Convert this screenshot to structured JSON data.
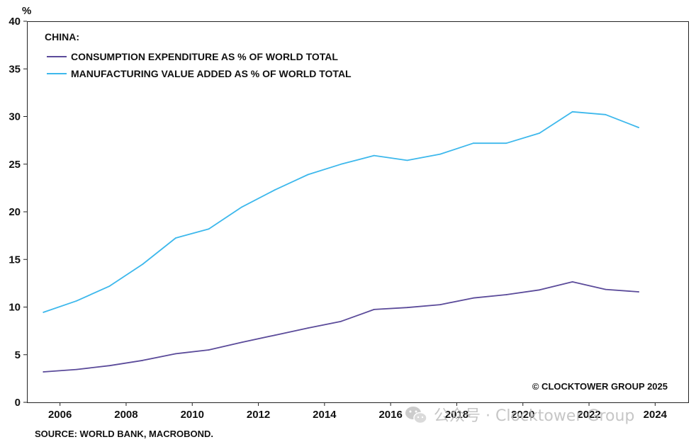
{
  "chart_data": {
    "type": "line",
    "title": "CHINA:",
    "ylabel": "%",
    "xlabel": "",
    "ylim": [
      0,
      40
    ],
    "yticks": [
      0,
      5,
      10,
      15,
      20,
      25,
      30,
      35,
      40
    ],
    "xlim": [
      2005,
      2025
    ],
    "xticks": [
      2006,
      2008,
      2010,
      2012,
      2014,
      2016,
      2018,
      2020,
      2022,
      2024
    ],
    "grid": false,
    "legend_position": "top-left",
    "series": [
      {
        "name": "CONSUMPTION EXPENDITURE AS % OF WORLD TOTAL",
        "color": "#5b4b9a",
        "x": [
          2005.5,
          2006.5,
          2007.5,
          2008.5,
          2009.5,
          2010.5,
          2011.5,
          2012.5,
          2013.5,
          2014.5,
          2015.5,
          2016.5,
          2017.5,
          2018.5,
          2019.5,
          2020.5,
          2021.5,
          2022.5,
          2023.5
        ],
        "values": [
          3.2,
          3.45,
          3.85,
          4.4,
          5.1,
          5.5,
          6.3,
          7.05,
          7.8,
          8.5,
          9.75,
          9.95,
          10.25,
          10.95,
          11.3,
          11.8,
          12.65,
          11.85,
          11.6
        ]
      },
      {
        "name": "MANUFACTURING VALUE ADDED AS % OF WORLD TOTAL",
        "color": "#3db8ec",
        "x": [
          2005.5,
          2006.5,
          2007.5,
          2008.5,
          2009.5,
          2010.5,
          2011.5,
          2012.5,
          2013.5,
          2014.5,
          2015.5,
          2016.5,
          2017.5,
          2018.5,
          2019.5,
          2020.5,
          2021.5,
          2022.5,
          2023.5
        ],
        "values": [
          9.45,
          10.65,
          12.2,
          14.5,
          17.25,
          18.2,
          20.5,
          22.3,
          23.9,
          25.0,
          25.9,
          25.4,
          26.05,
          27.2,
          27.2,
          28.25,
          30.5,
          30.2,
          28.85
        ]
      }
    ],
    "annotations": {
      "copyright": "© CLOCKTOWER GROUP 2025",
      "source": "SOURCE: WORLD BANK, MACROBOND."
    }
  },
  "watermark": {
    "text": "公众号 · Clocktower Group",
    "icon": "wechat-icon"
  }
}
